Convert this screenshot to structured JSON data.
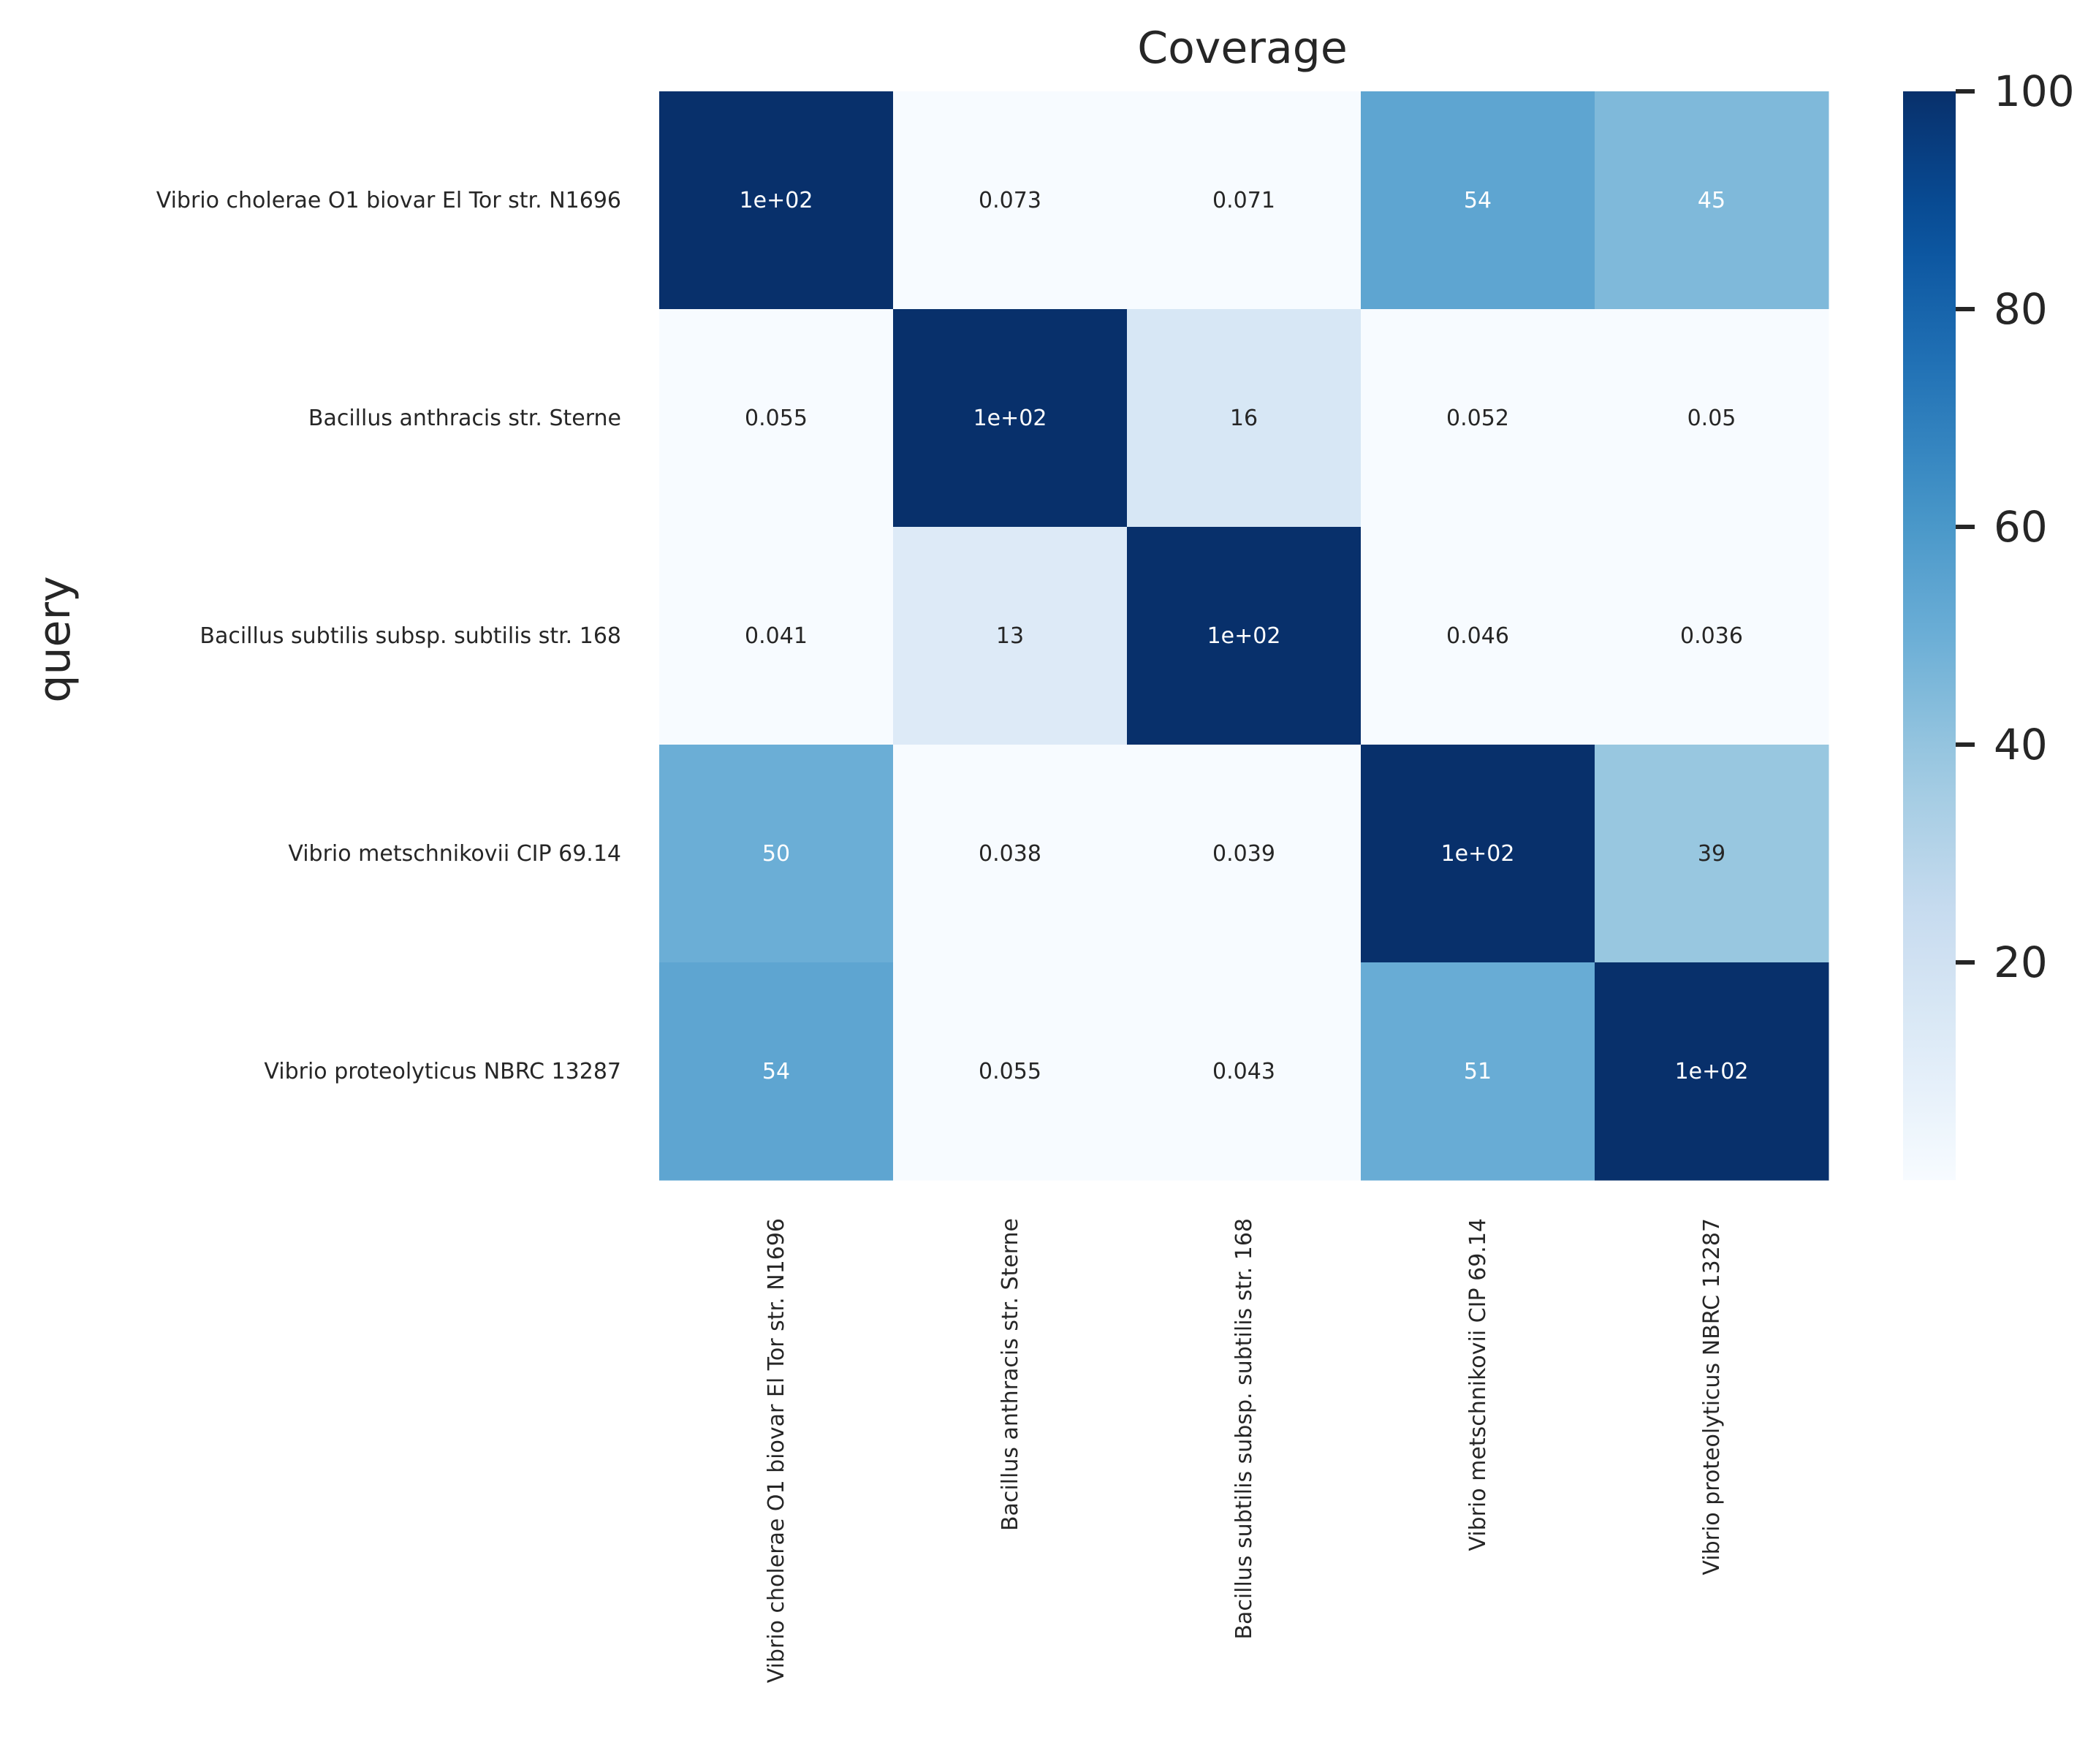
{
  "chart_data": {
    "type": "heatmap",
    "title": "Coverage",
    "ylabel": "query",
    "xlabel": "",
    "rows": [
      "Vibrio cholerae O1 biovar El Tor str. N1696",
      "Bacillus anthracis str. Sterne",
      "Bacillus subtilis subsp. subtilis str. 168",
      "Vibrio metschnikovii CIP 69.14",
      "Vibrio proteolyticus NBRC 13287"
    ],
    "columns": [
      "Vibrio cholerae O1 biovar El Tor str. N1696",
      "Bacillus anthracis str. Sterne",
      "Bacillus subtilis subsp. subtilis str. 168",
      "Vibrio metschnikovii CIP 69.14",
      "Vibrio proteolyticus NBRC 13287"
    ],
    "values": [
      [
        100,
        0.073,
        0.071,
        54,
        45
      ],
      [
        0.055,
        100,
        16,
        0.052,
        0.05
      ],
      [
        0.041,
        13,
        100,
        0.046,
        0.036
      ],
      [
        50,
        0.038,
        0.039,
        100,
        39
      ],
      [
        54,
        0.055,
        0.043,
        51,
        100
      ]
    ],
    "labels": [
      [
        "1e+02",
        "0.073",
        "0.071",
        "54",
        "45"
      ],
      [
        "0.055",
        "1e+02",
        "16",
        "0.052",
        "0.05"
      ],
      [
        "0.041",
        "13",
        "1e+02",
        "0.046",
        "0.036"
      ],
      [
        "50",
        "0.038",
        "0.039",
        "1e+02",
        "39"
      ],
      [
        "54",
        "0.055",
        "0.043",
        "51",
        "1e+02"
      ]
    ],
    "colormap": "Blues",
    "colorbar": {
      "range": [
        0,
        100
      ],
      "ticks": [
        20,
        40,
        60,
        80,
        100
      ]
    },
    "colors": {
      "low": "#f7fbff",
      "high": "#08306b",
      "text": "#262626"
    }
  }
}
